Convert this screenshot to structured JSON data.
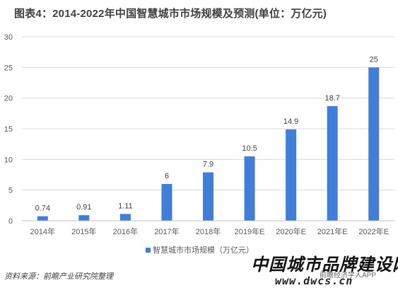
{
  "title": "图表4：2014-2022年中国智慧城市市场规模及预测(单位：万亿元)",
  "source": "资料来源：前瞻产业研究院整理",
  "watermark": {
    "main": "中国城市品牌建设网",
    "app": "前瞻经济学人APP",
    "url": "www.dwcs.cn"
  },
  "colors": {
    "bar": "#3f7fd9",
    "grid": "#d9d9d9",
    "axis": "#bfbfbf"
  },
  "chart_data": {
    "type": "bar",
    "categories": [
      "2014年",
      "2015年",
      "2016年",
      "2017年",
      "2018年",
      "2019年E",
      "2020年E",
      "2021年E",
      "2022年E"
    ],
    "values": [
      0.74,
      0.91,
      1.11,
      6,
      7.9,
      10.5,
      14.9,
      18.7,
      25
    ],
    "value_labels": [
      "0.74",
      "0.91",
      "1.11",
      "6",
      "7.9",
      "10.5",
      "14.9",
      "18.7",
      "25"
    ],
    "series": [
      {
        "name": "智慧城市市场规模（万亿元）",
        "values": [
          0.74,
          0.91,
          1.11,
          6,
          7.9,
          10.5,
          14.9,
          18.7,
          25
        ]
      }
    ],
    "yticks": [
      "0",
      "5",
      "10",
      "15",
      "20",
      "25",
      "30"
    ],
    "ylim": [
      0,
      30
    ],
    "grid": true,
    "legend": "bottom"
  }
}
